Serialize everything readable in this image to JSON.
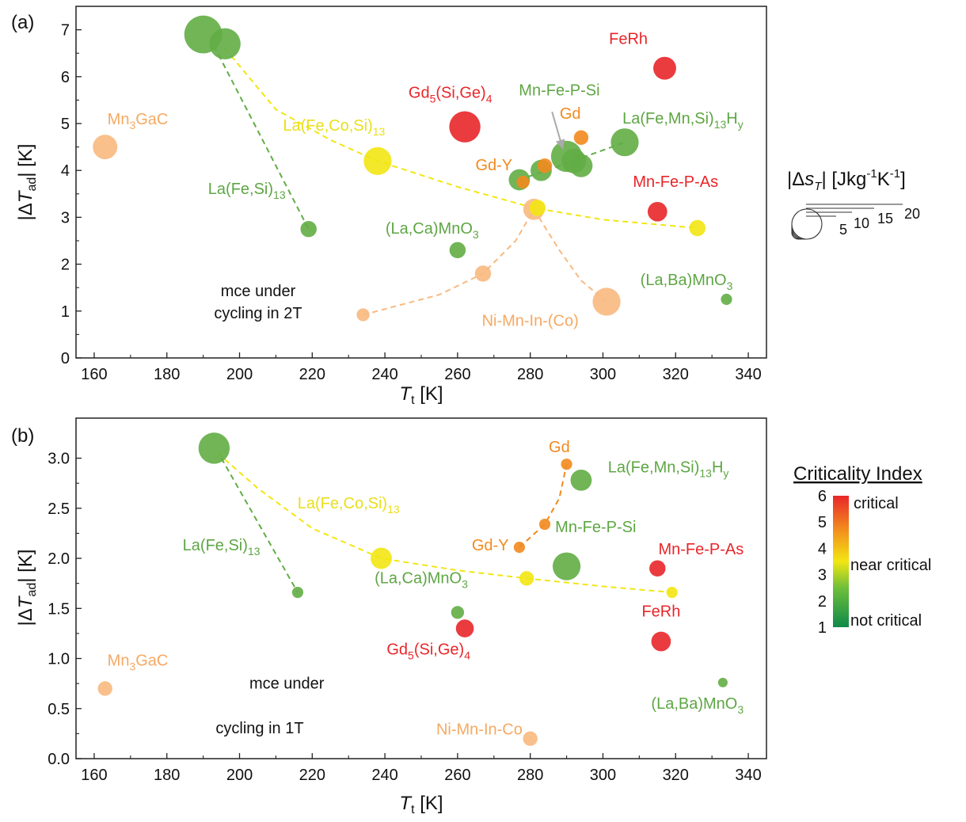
{
  "colors": {
    "critical": "#e8262a",
    "orange": "#f28a1e",
    "yellow": "#f2e612",
    "green": "#62ad45",
    "light_orange": "#f8b980",
    "frame": "#222222"
  },
  "chart_data": [
    {
      "type": "scatter",
      "panel_label": "(a)",
      "xlabel_main": "T",
      "xlabel_sub": "t",
      "xlabel_unit": " [K]",
      "ylabel_pre": "|Δ",
      "ylabel_var": "T",
      "ylabel_sub": "ad",
      "ylabel_post": "| [K]",
      "xlim": [
        155,
        345
      ],
      "ylim": [
        0,
        7.5
      ],
      "xticks": [
        160,
        180,
        200,
        220,
        240,
        260,
        280,
        300,
        320,
        340
      ],
      "yticks": [
        0,
        1,
        2,
        3,
        4,
        5,
        6,
        7
      ],
      "annotation": [
        "mce under",
        "cycling in 2T"
      ],
      "size_legend": {
        "title": "|Δs_T| [Jkg-1K-1]",
        "labels": [
          "5",
          "10",
          "15",
          "20"
        ]
      },
      "points": [
        {
          "x": 163,
          "y": 4.5,
          "ci": "light-orange",
          "s": 10,
          "label": "Mn3GaC"
        },
        {
          "x": 190,
          "y": 6.9,
          "ci": "green",
          "s": 18
        },
        {
          "x": 196,
          "y": 6.7,
          "ci": "green",
          "s": 14
        },
        {
          "x": 219,
          "y": 2.75,
          "ci": "green",
          "s": 5
        },
        {
          "x": 238,
          "y": 4.2,
          "ci": "yellow",
          "s": 12
        },
        {
          "x": 262,
          "y": 4.93,
          "ci": "red",
          "s": 14
        },
        {
          "x": 260,
          "y": 2.3,
          "ci": "green",
          "s": 5
        },
        {
          "x": 267,
          "y": 1.8,
          "ci": "light-orange",
          "s": 5
        },
        {
          "x": 234,
          "y": 0.92,
          "ci": "light-orange",
          "s": 3
        },
        {
          "x": 281,
          "y": 3.17,
          "ci": "light-orange",
          "s": 8
        },
        {
          "x": 282,
          "y": 3.2,
          "ci": "yellow",
          "s": 5
        },
        {
          "x": 301,
          "y": 1.2,
          "ci": "light-orange",
          "s": 12
        },
        {
          "x": 277,
          "y": 3.8,
          "ci": "green",
          "s": 8
        },
        {
          "x": 278,
          "y": 3.75,
          "ci": "orange",
          "s": 3
        },
        {
          "x": 283,
          "y": 4.0,
          "ci": "green",
          "s": 8
        },
        {
          "x": 284,
          "y": 4.1,
          "ci": "orange",
          "s": 4
        },
        {
          "x": 290,
          "y": 4.3,
          "ci": "green",
          "s": 14
        },
        {
          "x": 292,
          "y": 4.2,
          "ci": "green",
          "s": 10
        },
        {
          "x": 294,
          "y": 4.1,
          "ci": "green",
          "s": 9
        },
        {
          "x": 294,
          "y": 4.7,
          "ci": "orange",
          "s": 4
        },
        {
          "x": 306,
          "y": 4.6,
          "ci": "green",
          "s": 12
        },
        {
          "x": 317,
          "y": 6.18,
          "ci": "red",
          "s": 9
        },
        {
          "x": 315,
          "y": 3.12,
          "ci": "red",
          "s": 7
        },
        {
          "x": 326,
          "y": 2.77,
          "ci": "yellow",
          "s": 5
        },
        {
          "x": 334,
          "y": 1.25,
          "ci": "green",
          "s": 2
        }
      ],
      "labels": [
        {
          "text": "FeRh",
          "cls": "red",
          "x": 307,
          "y": 6.7
        },
        {
          "text": "Gd|5|(Si,Ge)|4",
          "cls": "red",
          "x": 258,
          "y": 5.55
        },
        {
          "text": "Mn-Fe-P-Si",
          "cls": "green",
          "x": 288,
          "y": 5.6
        },
        {
          "text": "Gd",
          "cls": "orange",
          "x": 291,
          "y": 5.1
        },
        {
          "text": "La(Fe,Mn,Si)|13|H|y",
          "cls": "green",
          "x": 322,
          "y": 5.0
        },
        {
          "text": "Mn|3|GaC",
          "cls": "light-orange",
          "x": 172,
          "y": 4.98
        },
        {
          "text": "La(Fe,Co,Si)|13",
          "cls": "yellow",
          "x": 226,
          "y": 4.85
        },
        {
          "text": "Gd-Y",
          "cls": "orange",
          "x": 270,
          "y": 4.0
        },
        {
          "text": "La(Fe,Si)|13",
          "cls": "green",
          "x": 202,
          "y": 3.5
        },
        {
          "text": "Mn-Fe-P-As",
          "cls": "red",
          "x": 320,
          "y": 3.65
        },
        {
          "text": "(La,Ca)MnO|3",
          "cls": "green",
          "x": 253,
          "y": 2.65
        },
        {
          "text": "(La,Ba)MnO|3",
          "cls": "green",
          "x": 323,
          "y": 1.55
        },
        {
          "text": "Ni-Mn-In-(Co)",
          "cls": "light-orange",
          "x": 280,
          "y": 0.68
        }
      ],
      "lines": [
        {
          "cls": "green",
          "pts": [
            [
              193,
              6.65
            ],
            [
              219,
              2.75
            ]
          ]
        },
        {
          "cls": "yellow",
          "pts": [
            [
              196,
              6.6
            ],
            [
              210,
              5.3
            ],
            [
              225,
              4.65
            ],
            [
              238,
              4.2
            ],
            [
              260,
              3.65
            ],
            [
              281,
              3.2
            ],
            [
              300,
              2.95
            ],
            [
              326,
              2.77
            ]
          ]
        },
        {
          "cls": "light-orange",
          "pts": [
            [
              234,
              0.92
            ],
            [
              255,
              1.35
            ],
            [
              267,
              1.8
            ],
            [
              276,
              2.5
            ],
            [
              281,
              3.17
            ]
          ]
        },
        {
          "cls": "light-orange",
          "pts": [
            [
              281,
              3.17
            ],
            [
              288,
              2.3
            ],
            [
              294,
              1.65
            ],
            [
              301,
              1.2
            ]
          ]
        },
        {
          "cls": "green",
          "pts": [
            [
              277,
              3.8
            ],
            [
              290,
              4.15
            ],
            [
              306,
              4.6
            ]
          ]
        }
      ],
      "arrows": [
        {
          "from": [
            286,
            5.25
          ],
          "to": [
            289,
            4.45
          ]
        }
      ]
    },
    {
      "type": "scatter",
      "panel_label": "(b)",
      "xlabel_main": "T",
      "xlabel_sub": "t",
      "xlabel_unit": " [K]",
      "ylabel_pre": "|Δ",
      "ylabel_var": "T",
      "ylabel_sub": "ad",
      "ylabel_post": "| [K]",
      "xlim": [
        155,
        345
      ],
      "ylim": [
        0,
        3.4
      ],
      "xticks": [
        160,
        180,
        200,
        220,
        240,
        260,
        280,
        300,
        320,
        340
      ],
      "yticks": [
        0.0,
        0.5,
        1.0,
        1.5,
        2.0,
        2.5,
        3.0
      ],
      "annotation": [
        "mce under",
        "cycling in 1T"
      ],
      "color_legend": {
        "title": "Criticality Index",
        "ticks": [
          "1",
          "2",
          "3",
          "4",
          "5",
          "6"
        ],
        "labels": [
          "critical",
          "near critical",
          "not critical"
        ]
      },
      "points": [
        {
          "x": 163,
          "y": 0.7,
          "ci": "light-orange",
          "s": 4
        },
        {
          "x": 193,
          "y": 3.1,
          "ci": "green",
          "s": 14
        },
        {
          "x": 216,
          "y": 1.66,
          "ci": "green",
          "s": 2
        },
        {
          "x": 239,
          "y": 2.0,
          "ci": "yellow",
          "s": 8
        },
        {
          "x": 260,
          "y": 1.46,
          "ci": "green",
          "s": 3
        },
        {
          "x": 262,
          "y": 1.3,
          "ci": "red",
          "s": 6
        },
        {
          "x": 277,
          "y": 2.11,
          "ci": "orange",
          "s": 2
        },
        {
          "x": 279,
          "y": 1.8,
          "ci": "yellow",
          "s": 4
        },
        {
          "x": 280,
          "y": 0.2,
          "ci": "light-orange",
          "s": 4
        },
        {
          "x": 284,
          "y": 2.34,
          "ci": "orange",
          "s": 2
        },
        {
          "x": 290,
          "y": 1.92,
          "ci": "green",
          "s": 12
        },
        {
          "x": 290,
          "y": 2.94,
          "ci": "orange",
          "s": 2
        },
        {
          "x": 294,
          "y": 2.78,
          "ci": "green",
          "s": 8
        },
        {
          "x": 315,
          "y": 1.9,
          "ci": "red",
          "s": 5
        },
        {
          "x": 316,
          "y": 1.17,
          "ci": "red",
          "s": 7
        },
        {
          "x": 319,
          "y": 1.66,
          "ci": "yellow",
          "s": 2
        },
        {
          "x": 333,
          "y": 0.76,
          "ci": "green",
          "s": 1
        }
      ],
      "labels": [
        {
          "text": "Gd",
          "cls": "orange",
          "x": 288,
          "y": 3.06
        },
        {
          "text": "La(Fe,Mn,Si)|13|H|y",
          "cls": "green",
          "x": 318,
          "y": 2.86
        },
        {
          "text": "La(Fe,Co,Si)|13",
          "cls": "yellow",
          "x": 230,
          "y": 2.5
        },
        {
          "text": "Mn-Fe-P-Si",
          "cls": "green",
          "x": 298,
          "y": 2.26
        },
        {
          "text": "Gd-Y",
          "cls": "orange",
          "x": 269,
          "y": 2.08
        },
        {
          "text": "La(Fe,Si)|13",
          "cls": "green",
          "x": 195,
          "y": 2.08
        },
        {
          "text": "Mn-Fe-P-As",
          "cls": "red",
          "x": 327,
          "y": 2.04
        },
        {
          "text": "(La,Ca)MnO|3",
          "cls": "green",
          "x": 250,
          "y": 1.75
        },
        {
          "text": "FeRh",
          "cls": "red",
          "x": 316,
          "y": 1.42
        },
        {
          "text": "Gd|5|(Si,Ge)|4",
          "cls": "red",
          "x": 252,
          "y": 1.04
        },
        {
          "text": "Mn|3|GaC",
          "cls": "light-orange",
          "x": 172,
          "y": 0.93
        },
        {
          "text": "mce under",
          "cls": "note",
          "x": 213,
          "y": 0.7
        },
        {
          "text": "(La,Ba)MnO|3",
          "cls": "green",
          "x": 326,
          "y": 0.5
        },
        {
          "text": "Ni-Mn-In-Co",
          "cls": "light-orange",
          "x": 266,
          "y": 0.24
        }
      ],
      "lines": [
        {
          "cls": "green",
          "pts": [
            [
              195,
              3.0
            ],
            [
              216,
              1.66
            ]
          ]
        },
        {
          "cls": "yellow",
          "pts": [
            [
              194,
              3.05
            ],
            [
              205,
              2.7
            ],
            [
              220,
              2.3
            ],
            [
              239,
              2.0
            ],
            [
              260,
              1.88
            ],
            [
              279,
              1.8
            ],
            [
              300,
              1.72
            ],
            [
              319,
              1.66
            ]
          ]
        },
        {
          "cls": "orange",
          "pts": [
            [
              277,
              2.11
            ],
            [
              284,
              2.34
            ],
            [
              288,
              2.6
            ],
            [
              290,
              2.94
            ]
          ]
        }
      ]
    }
  ]
}
